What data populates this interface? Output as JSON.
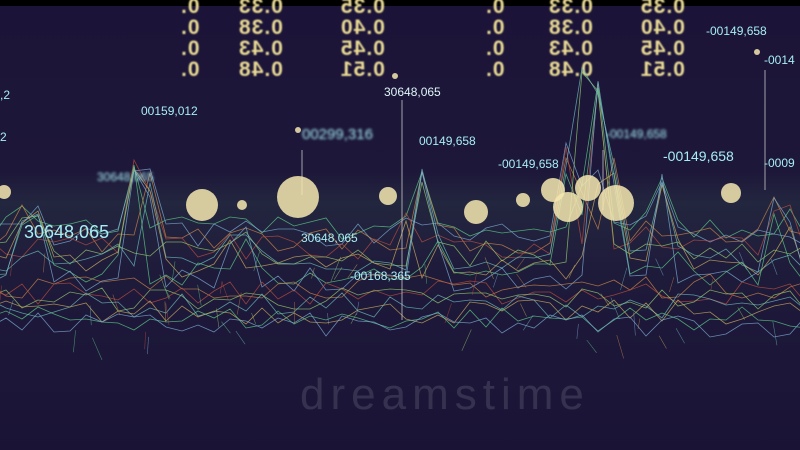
{
  "ticker_columns": [
    {
      "values": [
        "0.33",
        "0.38",
        "0.43",
        "0.48"
      ]
    },
    {
      "values": [
        "0.35",
        "0.40",
        "0.45",
        "0.51"
      ]
    },
    {
      "values": [
        "0.33",
        "0.38",
        "0.43",
        "0.48"
      ]
    },
    {
      "values": [
        "0.35",
        "0.40",
        "0.45",
        "0.51"
      ]
    }
  ],
  "labels": [
    ",2",
    "2",
    "00159,012",
    "00299,316",
    "30648,065",
    "00149,658",
    "-00149,658",
    "-00149,658",
    "-00149,658",
    "-00149,658",
    "-0014",
    "-0009",
    "30648,065",
    "30648,065",
    "30648,065",
    "-00168,365"
  ],
  "watermark": "dreamstime",
  "colors": {
    "background": "#1a1336",
    "label": "#a7eef4",
    "ticker": "#eadb94",
    "bokeh": "#f6e7b0"
  }
}
